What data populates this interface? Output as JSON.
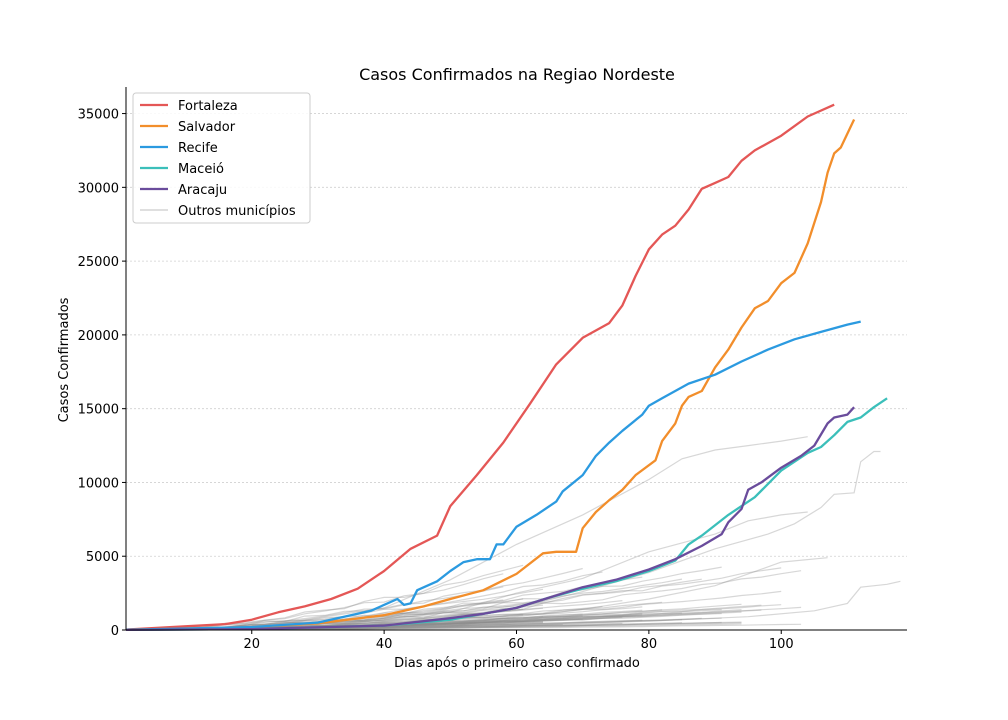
{
  "chart_data": {
    "type": "line",
    "title": "Casos Confirmados na Regiao Nordeste",
    "xlabel": "Dias após o primeiro caso confirmado",
    "ylabel": "Casos Confirmados",
    "xlim": [
      1,
      119
    ],
    "ylim": [
      0,
      36800
    ],
    "xticks": [
      20,
      40,
      60,
      80,
      100
    ],
    "yticks": [
      0,
      5000,
      10000,
      15000,
      20000,
      25000,
      30000,
      35000
    ],
    "grid": "horizontal",
    "legend_position": "top-left",
    "series": [
      {
        "name": "Fortaleza",
        "color": "#e45756",
        "points": [
          [
            1,
            30
          ],
          [
            10,
            250
          ],
          [
            16,
            400
          ],
          [
            20,
            700
          ],
          [
            24,
            1200
          ],
          [
            28,
            1600
          ],
          [
            32,
            2100
          ],
          [
            36,
            2800
          ],
          [
            40,
            4000
          ],
          [
            44,
            5500
          ],
          [
            48,
            6400
          ],
          [
            50,
            8400
          ],
          [
            54,
            10500
          ],
          [
            58,
            12700
          ],
          [
            62,
            15300
          ],
          [
            66,
            18000
          ],
          [
            70,
            19800
          ],
          [
            74,
            20800
          ],
          [
            76,
            22000
          ],
          [
            78,
            24000
          ],
          [
            80,
            25800
          ],
          [
            82,
            26800
          ],
          [
            84,
            27400
          ],
          [
            86,
            28500
          ],
          [
            88,
            29900
          ],
          [
            90,
            30300
          ],
          [
            92,
            30700
          ],
          [
            94,
            31800
          ],
          [
            96,
            32500
          ],
          [
            100,
            33500
          ],
          [
            104,
            34800
          ],
          [
            108,
            35600
          ]
        ]
      },
      {
        "name": "Salvador",
        "color": "#f28e2b",
        "points": [
          [
            1,
            20
          ],
          [
            10,
            100
          ],
          [
            20,
            200
          ],
          [
            30,
            450
          ],
          [
            40,
            1000
          ],
          [
            46,
            1600
          ],
          [
            50,
            2100
          ],
          [
            55,
            2700
          ],
          [
            60,
            3800
          ],
          [
            64,
            5200
          ],
          [
            66,
            5300
          ],
          [
            69,
            5300
          ],
          [
            70,
            6900
          ],
          [
            72,
            8000
          ],
          [
            74,
            8800
          ],
          [
            76,
            9500
          ],
          [
            78,
            10500
          ],
          [
            81,
            11500
          ],
          [
            82,
            12800
          ],
          [
            84,
            14000
          ],
          [
            85,
            15200
          ],
          [
            86,
            15800
          ],
          [
            88,
            16200
          ],
          [
            90,
            17800
          ],
          [
            92,
            19000
          ],
          [
            94,
            20500
          ],
          [
            96,
            21800
          ],
          [
            98,
            22300
          ],
          [
            100,
            23500
          ],
          [
            102,
            24200
          ],
          [
            104,
            26200
          ],
          [
            106,
            29000
          ],
          [
            107,
            31000
          ],
          [
            108,
            32300
          ],
          [
            109,
            32700
          ],
          [
            111,
            34600
          ]
        ]
      },
      {
        "name": "Recife",
        "color": "#2b9ae0",
        "points": [
          [
            1,
            20
          ],
          [
            10,
            100
          ],
          [
            20,
            200
          ],
          [
            30,
            500
          ],
          [
            38,
            1300
          ],
          [
            42,
            2100
          ],
          [
            43,
            1700
          ],
          [
            44,
            1800
          ],
          [
            45,
            2700
          ],
          [
            48,
            3300
          ],
          [
            50,
            4000
          ],
          [
            52,
            4600
          ],
          [
            54,
            4800
          ],
          [
            56,
            4800
          ],
          [
            57,
            5800
          ],
          [
            58,
            5800
          ],
          [
            60,
            7000
          ],
          [
            63,
            7800
          ],
          [
            66,
            8700
          ],
          [
            67,
            9400
          ],
          [
            70,
            10500
          ],
          [
            72,
            11800
          ],
          [
            74,
            12700
          ],
          [
            76,
            13500
          ],
          [
            79,
            14600
          ],
          [
            80,
            15200
          ],
          [
            82,
            15700
          ],
          [
            86,
            16700
          ],
          [
            90,
            17300
          ],
          [
            94,
            18200
          ],
          [
            98,
            19000
          ],
          [
            102,
            19700
          ],
          [
            106,
            20200
          ],
          [
            110,
            20700
          ],
          [
            112,
            20900
          ]
        ]
      },
      {
        "name": "Maceió",
        "color": "#3bbfba",
        "points": [
          [
            1,
            10
          ],
          [
            20,
            60
          ],
          [
            40,
            300
          ],
          [
            50,
            700
          ],
          [
            60,
            1500
          ],
          [
            65,
            2200
          ],
          [
            70,
            2800
          ],
          [
            75,
            3300
          ],
          [
            80,
            4000
          ],
          [
            84,
            4700
          ],
          [
            86,
            5800
          ],
          [
            88,
            6400
          ],
          [
            92,
            7800
          ],
          [
            96,
            9000
          ],
          [
            100,
            10800
          ],
          [
            104,
            12000
          ],
          [
            106,
            12400
          ],
          [
            108,
            13200
          ],
          [
            110,
            14100
          ],
          [
            112,
            14400
          ],
          [
            114,
            15100
          ],
          [
            116,
            15700
          ]
        ]
      },
      {
        "name": "Aracaju",
        "color": "#6a4c9c",
        "points": [
          [
            1,
            10
          ],
          [
            20,
            60
          ],
          [
            40,
            300
          ],
          [
            50,
            800
          ],
          [
            55,
            1100
          ],
          [
            60,
            1500
          ],
          [
            65,
            2200
          ],
          [
            70,
            2900
          ],
          [
            75,
            3400
          ],
          [
            80,
            4100
          ],
          [
            84,
            4800
          ],
          [
            88,
            5700
          ],
          [
            91,
            6500
          ],
          [
            92,
            7300
          ],
          [
            94,
            8200
          ],
          [
            95,
            9500
          ],
          [
            97,
            10000
          ],
          [
            100,
            11000
          ],
          [
            103,
            11800
          ],
          [
            105,
            12500
          ],
          [
            107,
            14000
          ],
          [
            108,
            14400
          ],
          [
            110,
            14600
          ],
          [
            111,
            15100
          ]
        ]
      }
    ]
  }
}
